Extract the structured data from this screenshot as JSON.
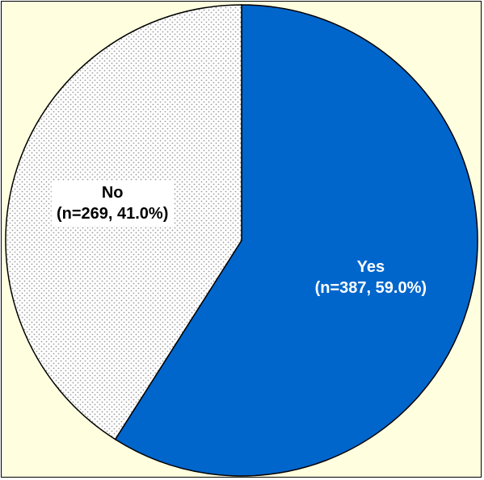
{
  "chart_data": {
    "type": "pie",
    "slices": [
      {
        "label": "Yes",
        "detail": "(n=387, 59.0%)",
        "value": 387,
        "percent": 59.0,
        "color": "#0066cc"
      },
      {
        "label": "No",
        "detail": "(n=269, 41.0%)",
        "value": 269,
        "percent": 41.0,
        "color": "#f2f2f2",
        "pattern": "dots"
      }
    ],
    "start_angle_deg": 0,
    "direction": "clockwise",
    "background_color": "#ffffe0"
  }
}
